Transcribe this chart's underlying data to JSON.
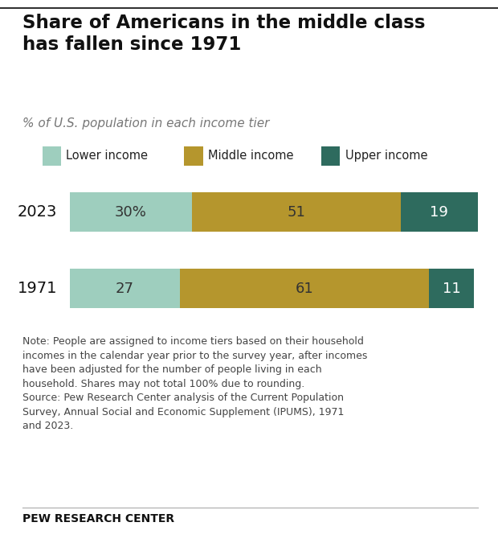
{
  "title": "Share of Americans in the middle class\nhas fallen since 1971",
  "subtitle": "% of U.S. population in each income tier",
  "years": [
    "2023",
    "1971"
  ],
  "lower_income": [
    30,
    27
  ],
  "middle_income": [
    51,
    61
  ],
  "upper_income": [
    19,
    11
  ],
  "colors": {
    "lower": "#9ecebe",
    "middle": "#b5962d",
    "upper": "#2e6b5e"
  },
  "note_line1": "Note: People are assigned to income tiers based on their household",
  "note_line2": "incomes in the calendar year prior to the survey year, after incomes",
  "note_line3": "have been adjusted for the number of people living in each",
  "note_line4": "household. Shares may not total 100% due to rounding.",
  "note_line5": "Source: Pew Research Center analysis of the Current Population",
  "note_line6": "Survey, Annual Social and Economic Supplement (IPUMS), 1971",
  "note_line7": "and 2023.",
  "source_label": "PEW RESEARCH CENTER",
  "legend_labels": [
    "Lower income",
    "Middle income",
    "Upper income"
  ],
  "bar_labels_2023": [
    "30%",
    "51",
    "19"
  ],
  "bar_labels_1971": [
    "27",
    "61",
    "11"
  ],
  "label_colors_lower": "#333333",
  "label_colors_middle": "#333333",
  "label_colors_upper": "#ffffff",
  "background_color": "#ffffff",
  "top_line_color": "#333333",
  "bottom_line_color": "#aaaaaa"
}
